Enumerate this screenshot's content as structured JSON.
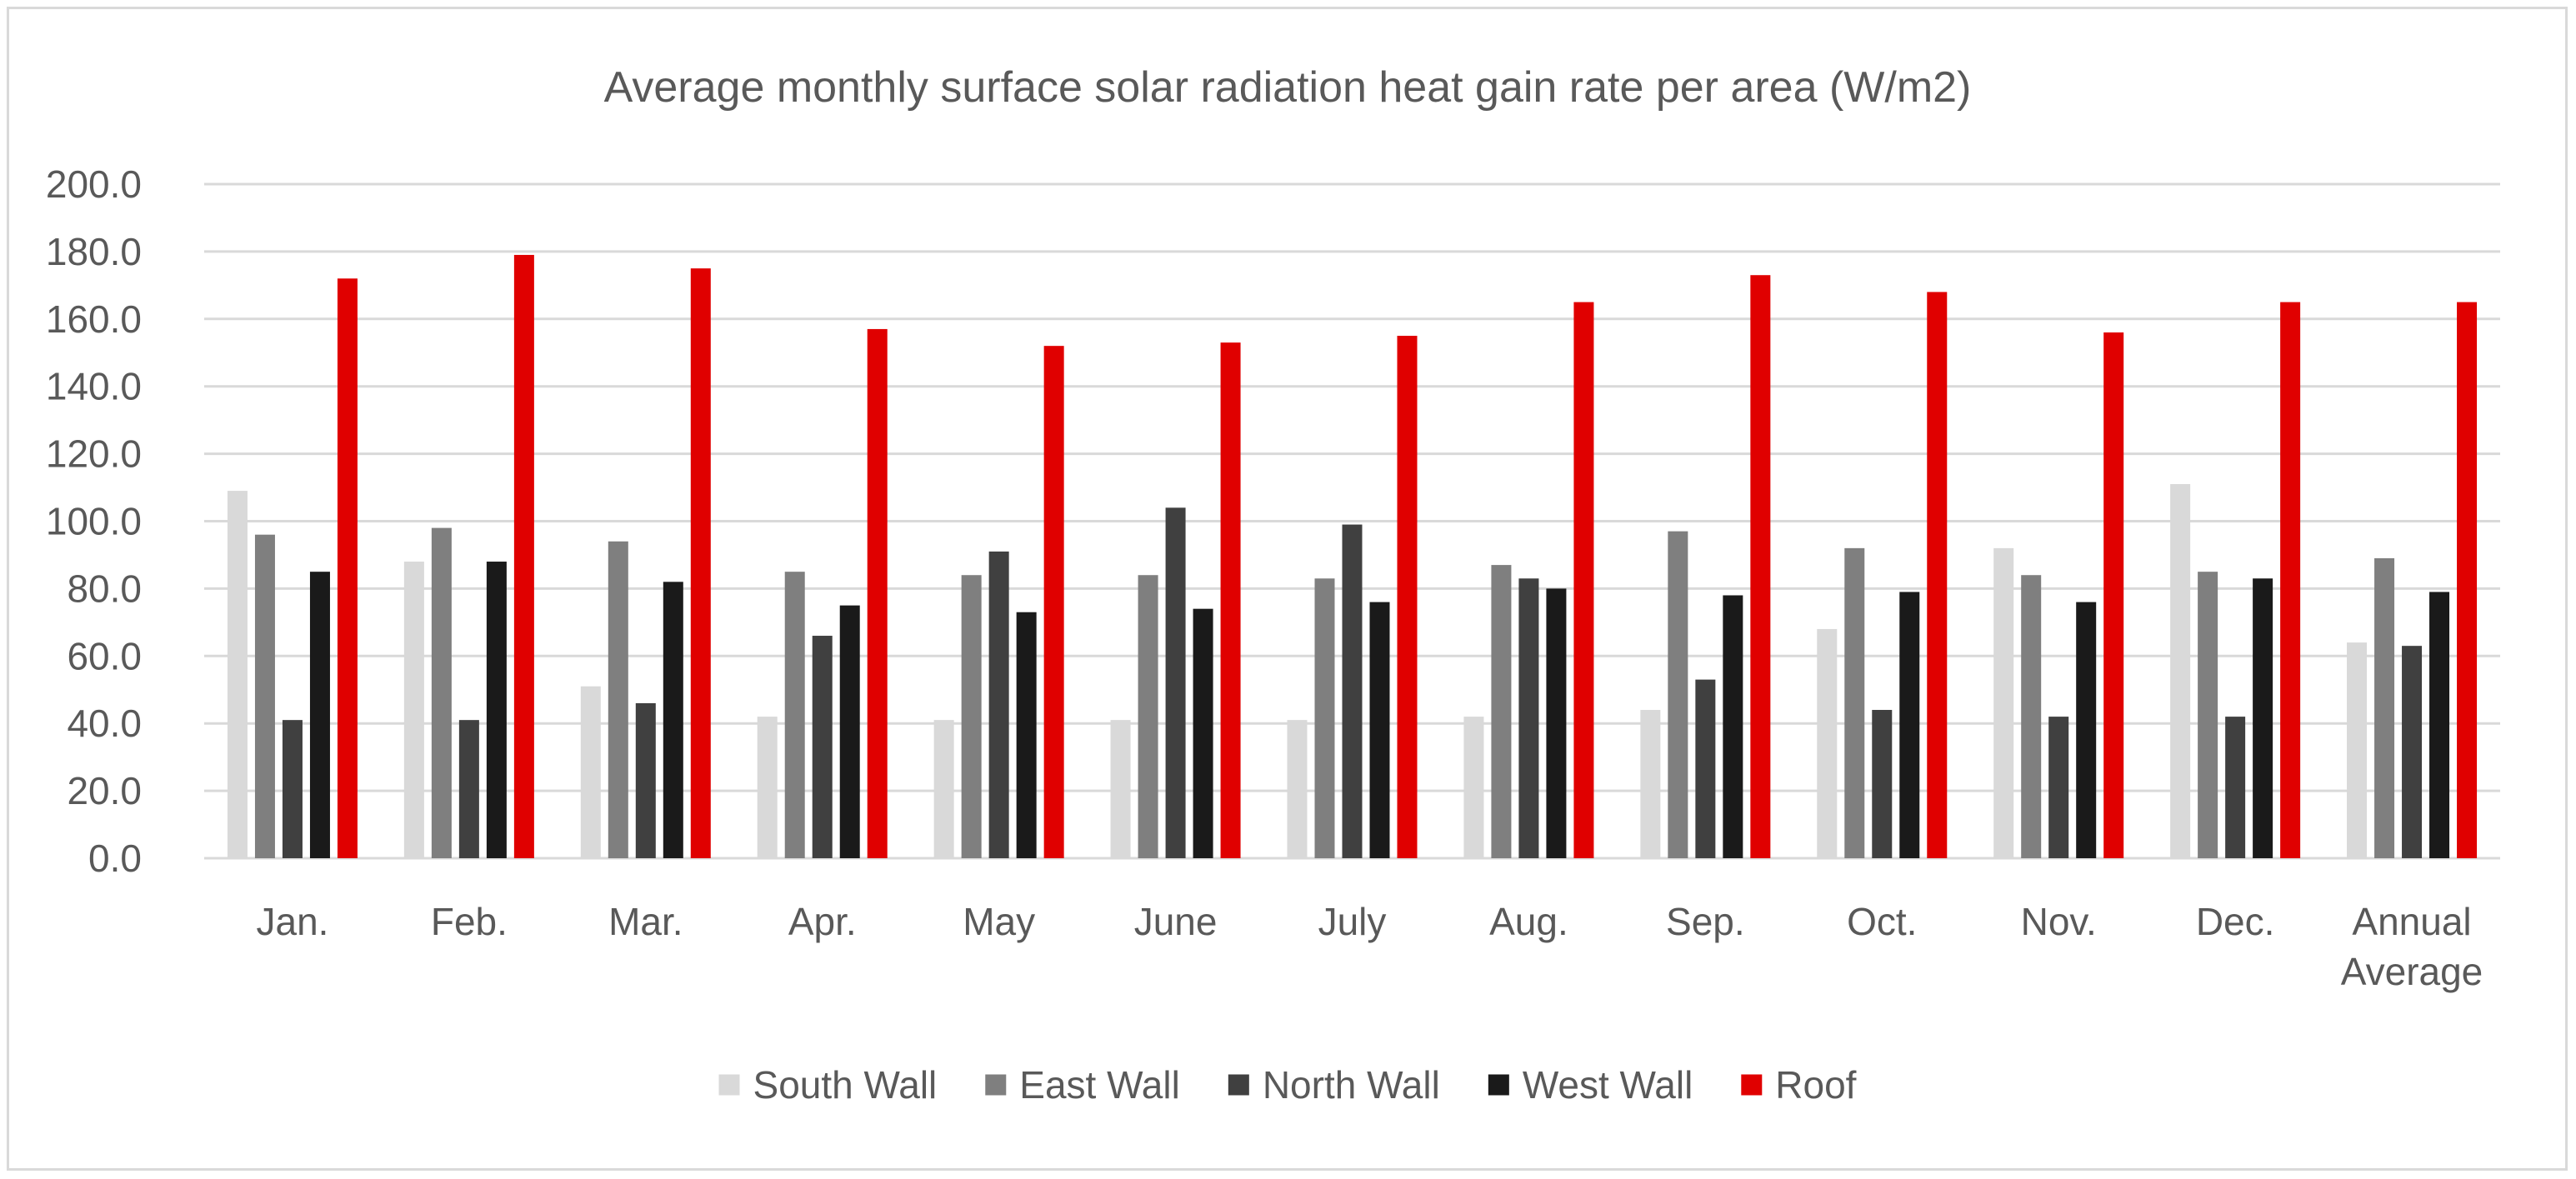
{
  "chart_data": {
    "type": "bar",
    "title": "Average monthly surface solar radiation heat gain rate per area (W/m2)",
    "xlabel": "",
    "ylabel": "",
    "ylim": [
      0,
      200
    ],
    "y_ticks": [
      "0.0",
      "20.0",
      "40.0",
      "60.0",
      "80.0",
      "100.0",
      "120.0",
      "140.0",
      "160.0",
      "180.0",
      "200.0"
    ],
    "grid": true,
    "legend_position": "bottom",
    "categories": [
      [
        "Jan."
      ],
      [
        "Feb."
      ],
      [
        "Mar."
      ],
      [
        "Apr."
      ],
      [
        "May"
      ],
      [
        "June"
      ],
      [
        "July"
      ],
      [
        "Aug."
      ],
      [
        "Sep."
      ],
      [
        "Oct."
      ],
      [
        "Nov."
      ],
      [
        "Dec."
      ],
      [
        "Annual",
        "Average"
      ]
    ],
    "series": [
      {
        "name": "South Wall",
        "color": "#d9d9d9",
        "values": [
          109,
          88,
          51,
          42,
          41,
          41,
          41,
          42,
          44,
          68,
          92,
          111,
          64
        ]
      },
      {
        "name": "East Wall",
        "color": "#7f7f7f",
        "values": [
          96,
          98,
          94,
          85,
          84,
          84,
          83,
          87,
          97,
          92,
          84,
          85,
          89
        ]
      },
      {
        "name": "North Wall",
        "color": "#404040",
        "values": [
          41,
          41,
          46,
          66,
          91,
          104,
          99,
          83,
          53,
          44,
          42,
          42,
          63
        ]
      },
      {
        "name": "West Wall",
        "color": "#1a1a1a",
        "values": [
          85,
          88,
          82,
          75,
          73,
          74,
          76,
          80,
          78,
          79,
          76,
          83,
          79
        ]
      },
      {
        "name": "Roof",
        "color": "#e00000",
        "values": [
          172,
          179,
          175,
          157,
          152,
          153,
          155,
          165,
          173,
          168,
          156,
          165,
          165
        ]
      }
    ]
  }
}
